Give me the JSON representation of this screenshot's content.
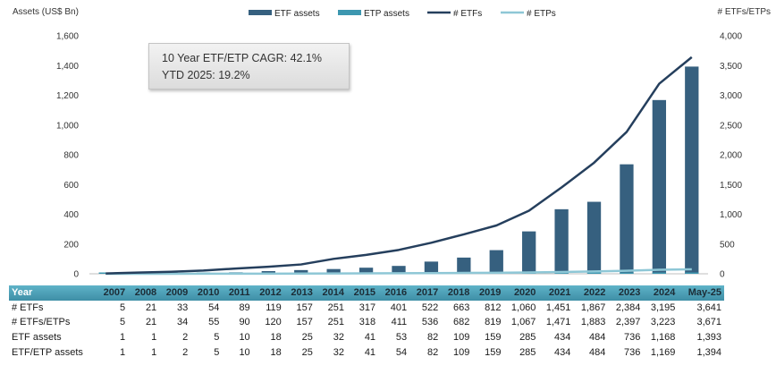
{
  "colors": {
    "etf_assets": "#36607f",
    "etp_assets": "#3d97b0",
    "num_etfs": "#253f5d",
    "num_etps": "#8ec7d6",
    "header_bg": "#4ca1b8"
  },
  "callout": {
    "line1": "10 Year ETF/ETP CAGR: 42.1%",
    "line2": "YTD 2025: 19.2%"
  },
  "chart_data": {
    "type": "bar",
    "title": "",
    "xlabel": "",
    "ylabel": "Assets (US$ Bn)",
    "y2label": "# ETFs/ETPs",
    "ylim": [
      0,
      1600
    ],
    "y2lim": [
      0,
      4000
    ],
    "yticks": [
      "0",
      "200",
      "400",
      "600",
      "800",
      "1,000",
      "1,200",
      "1,400",
      "1,600"
    ],
    "y2ticks": [
      "0",
      "500",
      "1,000",
      "1,500",
      "2,000",
      "2,500",
      "3,000",
      "3,500",
      "4,000"
    ],
    "legend_position": "top",
    "categories": [
      "2007",
      "2008",
      "2009",
      "2010",
      "2011",
      "2012",
      "2013",
      "2014",
      "2015",
      "2016",
      "2017",
      "2018",
      "2019",
      "2020",
      "2021",
      "2022",
      "2023",
      "2024",
      "May-25"
    ],
    "series": [
      {
        "name": "ETF assets",
        "type": "bar",
        "axis": "left",
        "values": [
          1,
          1,
          2,
          5,
          10,
          18,
          25,
          32,
          41,
          53,
          82,
          109,
          159,
          285,
          434,
          484,
          736,
          1168,
          1393
        ]
      },
      {
        "name": "ETP assets",
        "type": "bar",
        "axis": "left",
        "values": [
          1,
          1,
          2,
          5,
          10,
          18,
          25,
          32,
          41,
          54,
          82,
          109,
          159,
          285,
          434,
          484,
          736,
          1169,
          1394
        ]
      },
      {
        "name": "# ETFs",
        "type": "line",
        "axis": "right",
        "values": [
          5,
          21,
          33,
          54,
          89,
          119,
          157,
          251,
          317,
          401,
          522,
          663,
          812,
          1060,
          1451,
          1867,
          2384,
          3195,
          3641
        ]
      },
      {
        "name": "# ETPs",
        "type": "line",
        "axis": "right",
        "values": [
          5,
          21,
          34,
          55,
          90,
          120,
          157,
          251,
          318,
          411,
          536,
          682,
          819,
          1067,
          1471,
          1883,
          2397,
          3223,
          3671
        ]
      }
    ]
  },
  "table": {
    "header_label": "Year",
    "years": [
      "2007",
      "2008",
      "2009",
      "2010",
      "2011",
      "2012",
      "2013",
      "2014",
      "2015",
      "2016",
      "2017",
      "2018",
      "2019",
      "2020",
      "2021",
      "2022",
      "2023",
      "2024",
      "May-25"
    ],
    "rows": [
      {
        "label": "# ETFs",
        "values": [
          "5",
          "21",
          "33",
          "54",
          "89",
          "119",
          "157",
          "251",
          "317",
          "401",
          "522",
          "663",
          "812",
          "1,060",
          "1,451",
          "1,867",
          "2,384",
          "3,195",
          "3,641"
        ]
      },
      {
        "label": "# ETFs/ETPs",
        "values": [
          "5",
          "21",
          "34",
          "55",
          "90",
          "120",
          "157",
          "251",
          "318",
          "411",
          "536",
          "682",
          "819",
          "1,067",
          "1,471",
          "1,883",
          "2,397",
          "3,223",
          "3,671"
        ]
      },
      {
        "label": "ETF assets",
        "values": [
          "1",
          "1",
          "2",
          "5",
          "10",
          "18",
          "25",
          "32",
          "41",
          "53",
          "82",
          "109",
          "159",
          "285",
          "434",
          "484",
          "736",
          "1,168",
          "1,393"
        ]
      },
      {
        "label": "ETF/ETP assets",
        "values": [
          "1",
          "1",
          "2",
          "5",
          "10",
          "18",
          "25",
          "32",
          "41",
          "54",
          "82",
          "109",
          "159",
          "285",
          "434",
          "484",
          "736",
          "1,169",
          "1,394"
        ]
      }
    ]
  }
}
